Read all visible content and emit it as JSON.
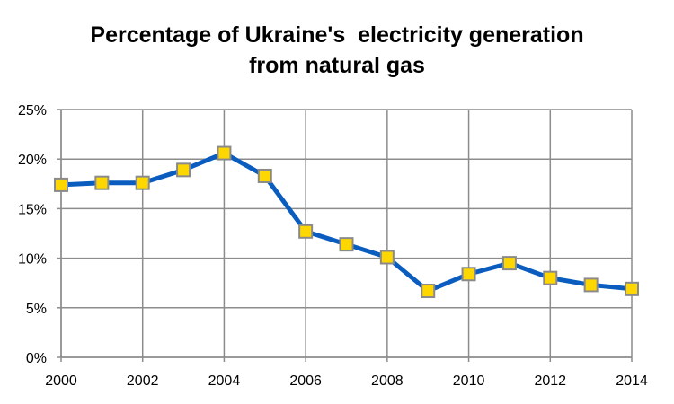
{
  "chart_data": {
    "type": "line",
    "title": "Percentage of Ukraine's  electricity generation\nfrom natural gas",
    "xlabel": "",
    "ylabel": "",
    "x": [
      2000,
      2001,
      2002,
      2003,
      2004,
      2005,
      2006,
      2007,
      2008,
      2009,
      2010,
      2011,
      2012,
      2013,
      2014
    ],
    "series": [
      {
        "values": [
          17.4,
          17.6,
          17.6,
          18.9,
          20.6,
          18.3,
          12.7,
          11.4,
          10.1,
          6.7,
          8.4,
          9.5,
          8.0,
          7.3,
          6.9
        ]
      }
    ],
    "xlim": [
      2000,
      2014
    ],
    "ylim": [
      0,
      25
    ],
    "x_ticks": [
      "2000",
      "2002",
      "2004",
      "2006",
      "2008",
      "2010",
      "2012",
      "2014"
    ],
    "y_ticks": [
      "0%",
      "5%",
      "10%",
      "15%",
      "20%",
      "25%"
    ],
    "grid": true,
    "legend": "none",
    "colors": {
      "line": "#0a5dbf",
      "marker_fill": "#ffd700",
      "marker_stroke": "#8a8a8a",
      "grid": "#8c8c8c"
    }
  }
}
